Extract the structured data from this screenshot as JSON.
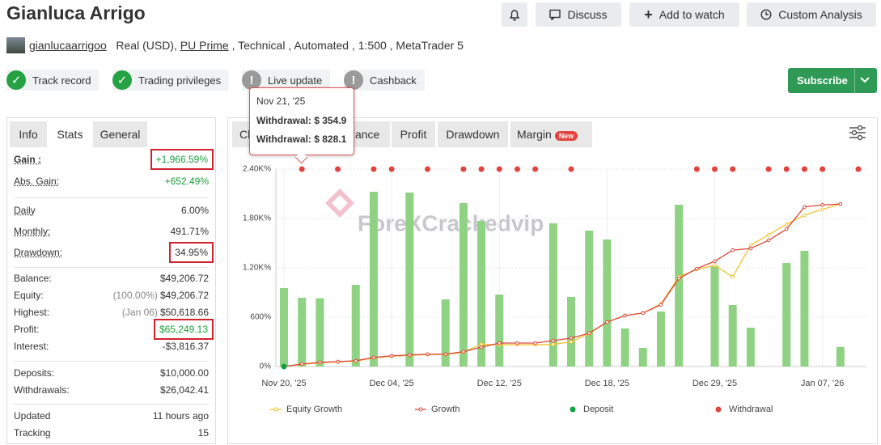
{
  "header": {
    "title": "Gianluca Arrigo",
    "buttons": [
      "Discuss",
      "Add to watch",
      "Custom Analysis"
    ],
    "username": "gianlucaarrigoo",
    "account": "Real (USD),",
    "broker": "PU Prime",
    "details": ", Technical , Automated , 1:500 , MetaTrader 5"
  },
  "badges": [
    "Track record",
    "Trading privileges",
    "Live update",
    "Cashback"
  ],
  "subscribe": "Subscribe",
  "side_tabs": [
    "Info",
    "Stats",
    "General"
  ],
  "stats": [
    [
      {
        "label": "Gain :",
        "value": "+1,966.59%",
        "color": "#1a9e3a",
        "boxed": true
      },
      {
        "label": "Abs. Gain:",
        "value": "+652.49%",
        "color": "#1a9e3a"
      }
    ],
    [
      {
        "label": "Daily",
        "value": "6.00%"
      },
      {
        "label": "Monthly:",
        "value": "491.71%"
      },
      {
        "label": "Drawdown:",
        "value": "34.95%",
        "boxed": true
      }
    ],
    [
      {
        "label": "Balance:",
        "value": "$49,206.72"
      },
      {
        "label": "Equity:",
        "note": "(100.00%)",
        "value": "$49,206.72"
      },
      {
        "label": "Highest:",
        "note": "(Jan 06)",
        "value": "$50,618.66"
      },
      {
        "label": "Profit:",
        "value": "$65,249.13",
        "color": "#1a9e3a",
        "boxed": true
      },
      {
        "label": "Interest:",
        "value": "-$3,816.37"
      }
    ],
    [
      {
        "label": "Deposits:",
        "value": "$10,000.00"
      },
      {
        "label": "Withdrawals:",
        "value": "$26,042.41"
      }
    ],
    [
      {
        "label": "Updated",
        "value": "11 hours ago"
      },
      {
        "label": "Tracking",
        "value": "15"
      }
    ]
  ],
  "chart_tabs": [
    "Chart",
    "Balance",
    "Profit",
    "Drawdown",
    "Margin"
  ],
  "new_badge": "New",
  "tooltip": {
    "date": "Nov 21, '25",
    "lines": [
      "Withdrawal: $ 354.9",
      "Withdrawal: $ 828.1"
    ]
  },
  "watermark": "ForeXCrackedvip",
  "chart_data": {
    "type": "combo",
    "categories": [
      "Nov 20, '25",
      null,
      null,
      null,
      null,
      null,
      "Dec 04, '25",
      null,
      null,
      null,
      null,
      null,
      "Dec 12, '25",
      null,
      null,
      null,
      null,
      null,
      "Dec 18, '25",
      null,
      null,
      null,
      null,
      null,
      "Dec 29, '25",
      null,
      null,
      null,
      null,
      null,
      "Jan 07, '26",
      null,
      null
    ],
    "ylim": [
      0,
      2400
    ],
    "yticks": [
      {
        "value": 0,
        "label": "0%"
      },
      {
        "value": 600,
        "label": "600%"
      },
      {
        "value": 1200,
        "label": "1.20K%"
      },
      {
        "value": 1800,
        "label": "1.80K%"
      },
      {
        "value": 2400,
        "label": "2.40K%"
      }
    ],
    "grid": true,
    "series": [
      {
        "type": "bar",
        "color": "#8fd283",
        "values": [
          954,
          836,
          830,
          null,
          993,
          2125,
          null,
          2115,
          null,
          816,
          1987,
          1770,
          875,
          null,
          null,
          1741,
          846,
          1652,
          1544,
          462,
          226,
          669,
          1967,
          null,
          1220,
          748,
          472,
          null,
          1259,
          1407,
          null,
          236,
          null
        ]
      },
      {
        "type": "line",
        "name": "Equity Growth",
        "color": "#f2c230",
        "values": [
          0,
          25,
          45,
          55,
          65,
          105,
          125,
          135,
          145,
          145,
          175,
          270,
          265,
          265,
          265,
          270,
          300,
          400,
          540,
          620,
          650,
          760,
          1090,
          1180,
          1230,
          1090,
          1475,
          1600,
          1730,
          1840,
          1910,
          1975,
          null
        ]
      },
      {
        "type": "line",
        "name": "Growth",
        "color": "#d9473c",
        "values": [
          0,
          30,
          50,
          60,
          70,
          110,
          130,
          140,
          150,
          150,
          180,
          235,
          285,
          285,
          285,
          315,
          345,
          405,
          540,
          620,
          650,
          750,
          1070,
          1190,
          1280,
          1415,
          1435,
          1535,
          1670,
          1940,
          1965,
          1975,
          null
        ]
      },
      {
        "type": "marker",
        "name": "Deposit",
        "color": "#13a043",
        "position": "bottom",
        "x": [
          0
        ]
      },
      {
        "type": "marker",
        "name": "Withdrawal",
        "color": "#e0443e",
        "position": "top",
        "x": [
          1,
          3,
          5,
          6,
          8,
          10,
          11,
          12,
          13,
          14,
          16,
          23,
          24,
          25,
          27,
          28,
          29,
          30,
          32
        ]
      }
    ]
  }
}
